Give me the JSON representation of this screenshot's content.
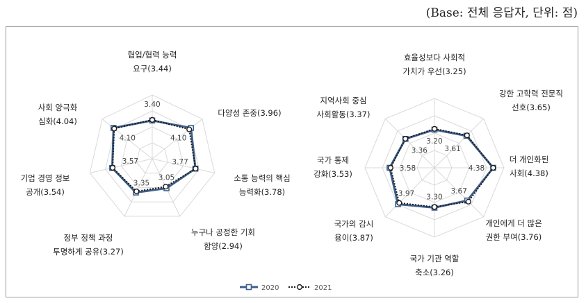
{
  "base_note": "(Base: 전체 응답자, 단위: 점)",
  "colors": {
    "series_2020": "#3d5f8c",
    "series_2021": "#1a1a1a",
    "grid": "#d9d9d9"
  },
  "legend": [
    "2020",
    "2021"
  ],
  "chart_data": [
    {
      "type": "radar",
      "categories": [
        "협업/협력 능력\n요구(3.44)",
        "다양성 존중(3.96)",
        "소통 능력의 핵심\n능력화(3.78)",
        "누구나 공정한 기회\n함양(2.94)",
        "정부 정책 과정\n투명하게 공유(3.27)",
        "기업 경영 정보\n공개(3.54)",
        "사회 양극화\n심화(4.04)"
      ],
      "series": [
        {
          "name": "2020",
          "values": [
            3.4,
            4.1,
            3.77,
            3.05,
            3.35,
            3.57,
            4.1
          ]
        },
        {
          "name": "2021",
          "values": [
            3.44,
            3.96,
            3.78,
            2.94,
            3.27,
            3.54,
            4.04
          ]
        }
      ],
      "value_labels": [
        "3.40",
        "4.10",
        "3.77",
        "3.05",
        "3.35",
        "3.57",
        "4.10"
      ],
      "ylim": [
        1,
        5
      ]
    },
    {
      "type": "radar",
      "categories": [
        "효율성보다 사회적\n가치가 우선(3.25)",
        "강한 고학력 전문직\n선호(3.65)",
        "더 개인화된\n사회(4.38)",
        "개인에게 더 많은\n권한 부여(3.76)",
        "국가 기관 역할\n축소(3.26)",
        "국가의 감시\n용이(3.87)",
        "국가 통제\n강화(3.53)",
        "지역사회 중심\n사회활동(3.37)"
      ],
      "series": [
        {
          "name": "2020",
          "values": [
            3.2,
            3.61,
            4.38,
            3.67,
            3.3,
            3.97,
            3.58,
            3.36
          ]
        },
        {
          "name": "2021",
          "values": [
            3.25,
            3.65,
            4.38,
            3.76,
            3.26,
            3.87,
            3.53,
            3.37
          ]
        }
      ],
      "value_labels": [
        "3.20",
        "3.61",
        "4.38",
        "3.67",
        "3.30",
        "3.97",
        "3.58",
        "3.36"
      ],
      "ylim": [
        1,
        5
      ]
    }
  ]
}
